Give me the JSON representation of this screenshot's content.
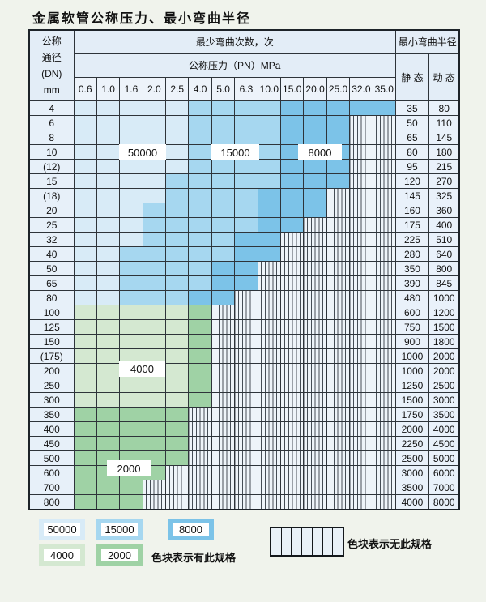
{
  "title": "金属软管公称压力、最小弯曲半径",
  "table": {
    "corner_lines": [
      "公称",
      "通径",
      "(DN)",
      "mm"
    ],
    "bend_header": "最少弯曲次数，次",
    "pressure_header": "公称压力（PN）MPa",
    "radius_header": "最小弯曲半径",
    "static_label": "静 态",
    "dynamic_label": "动 态",
    "pressures": [
      "0.6",
      "1.0",
      "1.6",
      "2.0",
      "2.5",
      "4.0",
      "5.0",
      "6.3",
      "10.0",
      "15.0",
      "20.0",
      "25.0",
      "32.0",
      "35.0"
    ],
    "cell_color_codes": {
      "L": "cycles 50000 light blue",
      "M": "cycles 15000 medium blue",
      "D": "cycles 8000 dark blue",
      "g": "cycles 4000 light green",
      "G": "cycles 2000 medium green",
      "S": "no specification (striped)"
    },
    "rows": [
      {
        "dn": "4",
        "cells": "LLLLLMMMMDDDDD",
        "static": "35",
        "dynamic": "80"
      },
      {
        "dn": "6",
        "cells": "LLLLLMMMMDDDSS",
        "static": "50",
        "dynamic": "110"
      },
      {
        "dn": "8",
        "cells": "LLLLLMMMMDDDSS",
        "static": "65",
        "dynamic": "145"
      },
      {
        "dn": "10",
        "cells": "LLLLLMMMMDDDSS",
        "static": "80",
        "dynamic": "180"
      },
      {
        "dn": "(12)",
        "cells": "LLLLLMMMMDDDSS",
        "static": "95",
        "dynamic": "215"
      },
      {
        "dn": "15",
        "cells": "LLLLMMMMMDDDSS",
        "static": "120",
        "dynamic": "270"
      },
      {
        "dn": "(18)",
        "cells": "LLLLMMMMDDDSSS",
        "static": "145",
        "dynamic": "325"
      },
      {
        "dn": "20",
        "cells": "LLLMMMMMDDDSSS",
        "static": "160",
        "dynamic": "360"
      },
      {
        "dn": "25",
        "cells": "LLLMMMMMDDSSSS",
        "static": "175",
        "dynamic": "400"
      },
      {
        "dn": "32",
        "cells": "LLLMMMMDDSSSSS",
        "static": "225",
        "dynamic": "510"
      },
      {
        "dn": "40",
        "cells": "LLMMMMMDDSSSSS",
        "static": "280",
        "dynamic": "640"
      },
      {
        "dn": "50",
        "cells": "LLMMMMDDSSSSSS",
        "static": "350",
        "dynamic": "800"
      },
      {
        "dn": "65",
        "cells": "LLMMMMDDSSSSSS",
        "static": "390",
        "dynamic": "845"
      },
      {
        "dn": "80",
        "cells": "LLMMMDDSSSSSSS",
        "static": "480",
        "dynamic": "1000"
      },
      {
        "dn": "100",
        "cells": "gggggGSSSSSSSS",
        "static": "600",
        "dynamic": "1200"
      },
      {
        "dn": "125",
        "cells": "gggggGSSSSSSSS",
        "static": "750",
        "dynamic": "1500"
      },
      {
        "dn": "150",
        "cells": "gggggGSSSSSSSS",
        "static": "900",
        "dynamic": "1800"
      },
      {
        "dn": "(175)",
        "cells": "gggggGSSSSSSSS",
        "static": "1000",
        "dynamic": "2000"
      },
      {
        "dn": "200",
        "cells": "gggggGSSSSSSSS",
        "static": "1000",
        "dynamic": "2000"
      },
      {
        "dn": "250",
        "cells": "gggggGSSSSSSSS",
        "static": "1250",
        "dynamic": "2500"
      },
      {
        "dn": "300",
        "cells": "gggggGSSSSSSSS",
        "static": "1500",
        "dynamic": "3000"
      },
      {
        "dn": "350",
        "cells": "GGGGGSSSSSSSSS",
        "static": "1750",
        "dynamic": "3500"
      },
      {
        "dn": "400",
        "cells": "GGGGGSSSSSSSSS",
        "static": "2000",
        "dynamic": "4000"
      },
      {
        "dn": "450",
        "cells": "GGGGGSSSSSSSSS",
        "static": "2250",
        "dynamic": "4500"
      },
      {
        "dn": "500",
        "cells": "GGGGGSSSSSSSSS",
        "static": "2500",
        "dynamic": "5000"
      },
      {
        "dn": "600",
        "cells": "GGGGSSSSSSSSSS",
        "static": "3000",
        "dynamic": "6000"
      },
      {
        "dn": "700",
        "cells": "GGGSSSSSSSSSSS",
        "static": "3500",
        "dynamic": "7000"
      },
      {
        "dn": "800",
        "cells": "GGGSSSSSSSSSSS",
        "static": "4000",
        "dynamic": "8000"
      }
    ]
  },
  "overlay_labels": {
    "l50000": "50000",
    "l15000": "15000",
    "l8000": "8000",
    "l4000": "4000",
    "l2000": "2000"
  },
  "legend": {
    "has_spec_text": "色块表示有此规格",
    "no_spec_text": "色块表示无此规格"
  },
  "colors": {
    "cycles_50000": "#d8ebf7",
    "cycles_15000": "#a6d7f0",
    "cycles_8000": "#7cc3e8",
    "cycles_4000": "#d4e8d1",
    "cycles_2000": "#9fd2a5",
    "stripe_background": "#eef4f9",
    "grid_line": "#2e343a",
    "page_background": "#f0f3ec"
  }
}
